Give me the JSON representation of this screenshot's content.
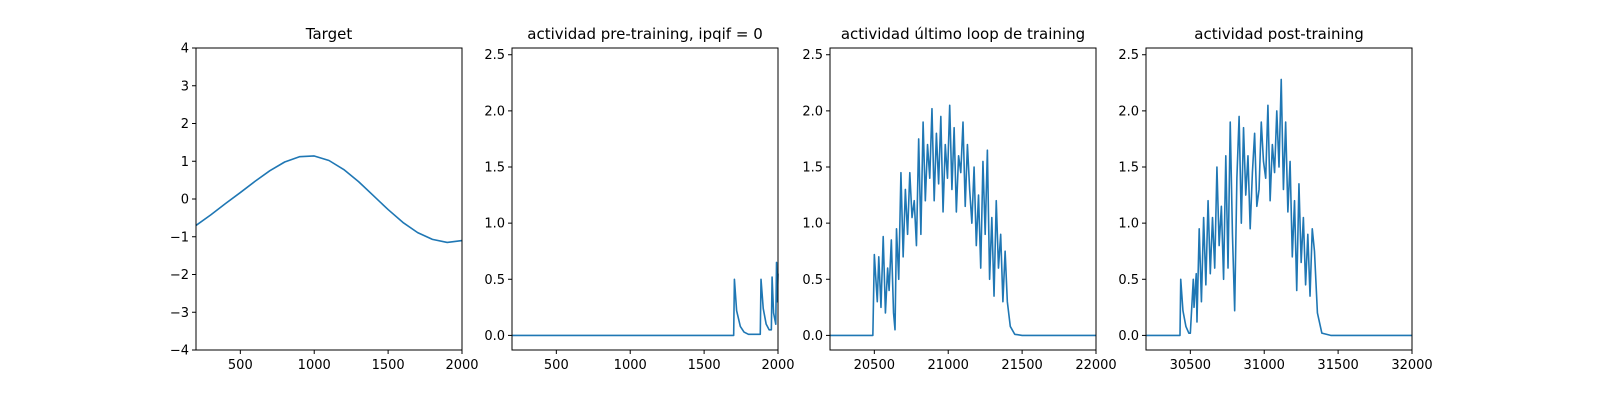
{
  "chart_data": [
    {
      "type": "line",
      "title": "Target",
      "xlabel": "",
      "ylabel": "",
      "xlim": [
        200,
        2000
      ],
      "ylim": [
        -4,
        4
      ],
      "xticks": [
        500,
        1000,
        1500,
        2000
      ],
      "yticks": [
        -4,
        -3,
        -2,
        -1,
        0,
        1,
        2,
        3,
        4
      ],
      "grid": false,
      "line_color": "#1f77b4",
      "series": [
        {
          "x": [
            200,
            300,
            400,
            500,
            600,
            700,
            800,
            900,
            1000,
            1100,
            1200,
            1300,
            1400,
            1500,
            1600,
            1700,
            1800,
            1900,
            2000
          ],
          "y": [
            -0.7,
            -0.42,
            -0.12,
            0.17,
            0.47,
            0.75,
            0.98,
            1.12,
            1.14,
            1.02,
            0.78,
            0.46,
            0.09,
            -0.28,
            -0.62,
            -0.89,
            -1.07,
            -1.15,
            -1.1
          ]
        }
      ]
    },
    {
      "type": "line",
      "title": "actividad pre-training, ipqif = 0",
      "xlabel": "",
      "ylabel": "",
      "xlim": [
        200,
        2000
      ],
      "ylim": [
        -0.13,
        2.56
      ],
      "xticks": [
        500,
        1000,
        1500,
        2000
      ],
      "yticks": [
        0.0,
        0.5,
        1.0,
        1.5,
        2.0,
        2.5
      ],
      "grid": false,
      "line_color": "#1f77b4",
      "series": [
        {
          "x": [
            200,
            1700,
            1705,
            1720,
            1745,
            1770,
            1800,
            1880,
            1885,
            1900,
            1920,
            1940,
            1955,
            1960,
            1970,
            1985,
            1990,
            1995,
            2000
          ],
          "y": [
            0,
            0,
            0.5,
            0.22,
            0.08,
            0.03,
            0.01,
            0.01,
            0.5,
            0.24,
            0.1,
            0.05,
            0.05,
            0.52,
            0.2,
            0.1,
            0.65,
            0.3,
            0.55
          ]
        }
      ]
    },
    {
      "type": "line",
      "title": "actividad último loop de training",
      "xlabel": "",
      "ylabel": "",
      "xlim": [
        20200,
        22000
      ],
      "ylim": [
        -0.13,
        2.56
      ],
      "xticks": [
        20500,
        21000,
        21500,
        22000
      ],
      "yticks": [
        0.0,
        0.5,
        1.0,
        1.5,
        2.0,
        2.5
      ],
      "grid": false,
      "line_color": "#1f77b4",
      "series": [
        {
          "x": [
            20200,
            20490,
            20500,
            20520,
            20530,
            20545,
            20560,
            20575,
            20590,
            20600,
            20615,
            20630,
            20640,
            20650,
            20665,
            20680,
            20695,
            20710,
            20725,
            20740,
            20755,
            20770,
            20785,
            20800,
            20815,
            20830,
            20845,
            20860,
            20875,
            20890,
            20905,
            20920,
            20935,
            20950,
            20965,
            20980,
            20995,
            21010,
            21025,
            21040,
            21055,
            21070,
            21085,
            21100,
            21115,
            21130,
            21145,
            21160,
            21175,
            21190,
            21205,
            21220,
            21235,
            21250,
            21265,
            21280,
            21295,
            21310,
            21325,
            21340,
            21355,
            21370,
            21385,
            21400,
            21420,
            21450,
            21500,
            22000
          ],
          "y": [
            0,
            0,
            0.72,
            0.3,
            0.7,
            0.25,
            0.88,
            0.2,
            0.6,
            0.4,
            0.85,
            0.2,
            0.05,
            0.95,
            0.5,
            1.45,
            0.7,
            1.3,
            0.9,
            1.45,
            1.05,
            1.2,
            0.8,
            1.75,
            0.9,
            1.9,
            1.2,
            1.7,
            1.4,
            2.02,
            1.2,
            1.8,
            1.35,
            1.95,
            1.1,
            1.7,
            1.4,
            2.05,
            1.3,
            1.85,
            1.1,
            1.6,
            1.45,
            1.9,
            1.15,
            1.7,
            1.3,
            1.0,
            1.5,
            0.8,
            1.25,
            0.6,
            1.55,
            0.9,
            1.65,
            0.5,
            1.05,
            0.35,
            1.2,
            0.6,
            0.9,
            0.3,
            0.75,
            0.3,
            0.08,
            0.01,
            0,
            0
          ]
        }
      ]
    },
    {
      "type": "line",
      "title": "actividad post-training",
      "xlabel": "",
      "ylabel": "",
      "xlim": [
        30200,
        32000
      ],
      "ylim": [
        -0.13,
        2.56
      ],
      "xticks": [
        30500,
        31000,
        31500,
        32000
      ],
      "yticks": [
        0.0,
        0.5,
        1.0,
        1.5,
        2.0,
        2.5
      ],
      "grid": false,
      "line_color": "#1f77b4",
      "series": [
        {
          "x": [
            30200,
            30430,
            30435,
            30450,
            30470,
            30490,
            30500,
            30520,
            30525,
            30540,
            30545,
            30560,
            30575,
            30590,
            30605,
            30620,
            30635,
            30650,
            30665,
            30680,
            30695,
            30710,
            30725,
            30740,
            30755,
            30770,
            30785,
            30800,
            30815,
            30830,
            30845,
            30860,
            30875,
            30890,
            30905,
            30920,
            30935,
            30950,
            30965,
            30980,
            30995,
            31010,
            31025,
            31040,
            31055,
            31070,
            31085,
            31100,
            31115,
            31130,
            31145,
            31160,
            31175,
            31190,
            31205,
            31220,
            31235,
            31250,
            31265,
            31280,
            31295,
            31310,
            31325,
            31340,
            31360,
            31390,
            31450,
            32000
          ],
          "y": [
            0,
            0,
            0.5,
            0.22,
            0.08,
            0.02,
            0.02,
            0.5,
            0.25,
            0.55,
            0.12,
            0.95,
            0.3,
            1.05,
            0.45,
            1.2,
            0.55,
            1.05,
            0.6,
            1.5,
            0.8,
            1.15,
            0.5,
            1.6,
            0.6,
            1.9,
            0.9,
            0.22,
            1.4,
            1.95,
            1.0,
            1.85,
            1.25,
            1.6,
            0.95,
            1.45,
            1.8,
            1.15,
            1.3,
            1.9,
            1.55,
            1.4,
            2.05,
            1.2,
            1.7,
            1.45,
            2.0,
            1.5,
            2.28,
            1.3,
            1.9,
            1.1,
            1.55,
            0.7,
            1.2,
            0.4,
            1.35,
            0.65,
            1.05,
            0.45,
            0.9,
            0.35,
            0.95,
            0.75,
            0.2,
            0.02,
            0,
            0
          ]
        }
      ]
    }
  ]
}
